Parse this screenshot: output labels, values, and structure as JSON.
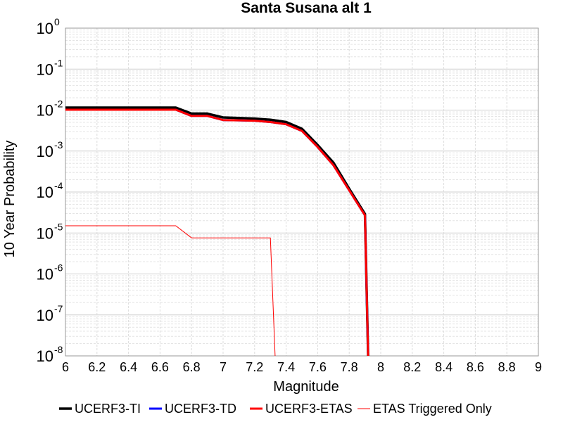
{
  "chart_data": {
    "type": "line",
    "title": "Santa Susana alt 1",
    "xlabel": "Magnitude",
    "ylabel": "10 Year Probability",
    "xlim": [
      6,
      9
    ],
    "ylim": [
      1e-08,
      1
    ],
    "yscale": "log",
    "grid": true,
    "legend_position": "bottom",
    "x_ticks": [
      "6",
      "6.2",
      "6.4",
      "6.6",
      "6.8",
      "7",
      "7.2",
      "7.4",
      "7.6",
      "7.8",
      "8",
      "8.2",
      "8.4",
      "8.6",
      "8.8",
      "9"
    ],
    "y_ticks": [
      {
        "base": "10",
        "exp": "0",
        "value": 1
      },
      {
        "base": "10",
        "exp": "-1",
        "value": 0.1
      },
      {
        "base": "10",
        "exp": "-2",
        "value": 0.01
      },
      {
        "base": "10",
        "exp": "-3",
        "value": 0.001
      },
      {
        "base": "10",
        "exp": "-4",
        "value": 0.0001
      },
      {
        "base": "10",
        "exp": "-5",
        "value": 1e-05
      },
      {
        "base": "10",
        "exp": "-6",
        "value": 1e-06
      },
      {
        "base": "10",
        "exp": "-7",
        "value": 1e-07
      },
      {
        "base": "10",
        "exp": "-8",
        "value": 1e-08
      }
    ],
    "series": [
      {
        "name": "UCERF3-TI",
        "color": "#000000",
        "width": 3.5,
        "x": [
          6.0,
          6.7,
          6.8,
          6.9,
          7.0,
          7.1,
          7.2,
          7.3,
          7.4,
          7.5,
          7.6,
          7.7,
          7.8,
          7.9,
          7.92
        ],
        "y": [
          0.0115,
          0.0115,
          0.0082,
          0.0082,
          0.0066,
          0.0064,
          0.0062,
          0.0058,
          0.0051,
          0.0035,
          0.0014,
          0.00052,
          0.00012,
          2.9e-05,
          1e-08
        ]
      },
      {
        "name": "UCERF3-TD",
        "color": "#0000ff",
        "width": 3,
        "x": [
          6.0,
          6.7,
          6.8,
          6.9,
          7.0,
          7.1,
          7.2,
          7.3,
          7.4,
          7.5,
          7.6,
          7.7,
          7.8,
          7.9,
          7.92
        ],
        "y": [
          0.0102,
          0.0102,
          0.0072,
          0.0072,
          0.0057,
          0.0056,
          0.0055,
          0.0051,
          0.0045,
          0.0031,
          0.00125,
          0.00045,
          0.00011,
          2.7e-05,
          1e-08
        ]
      },
      {
        "name": "UCERF3-ETAS",
        "color": "#ff0000",
        "width": 3,
        "x": [
          6.0,
          6.7,
          6.8,
          6.9,
          7.0,
          7.1,
          7.2,
          7.3,
          7.4,
          7.5,
          7.6,
          7.7,
          7.8,
          7.9,
          7.92
        ],
        "y": [
          0.0102,
          0.0102,
          0.0072,
          0.0072,
          0.0057,
          0.0056,
          0.0055,
          0.0051,
          0.0045,
          0.0031,
          0.00125,
          0.00045,
          0.00011,
          2.7e-05,
          1e-08
        ]
      },
      {
        "name": "ETAS Triggered Only",
        "color": "#ff0000",
        "width": 1,
        "x": [
          6.0,
          6.7,
          6.8,
          7.3,
          7.33
        ],
        "y": [
          1.5e-05,
          1.5e-05,
          7.6e-06,
          7.6e-06,
          1e-08
        ]
      }
    ]
  }
}
